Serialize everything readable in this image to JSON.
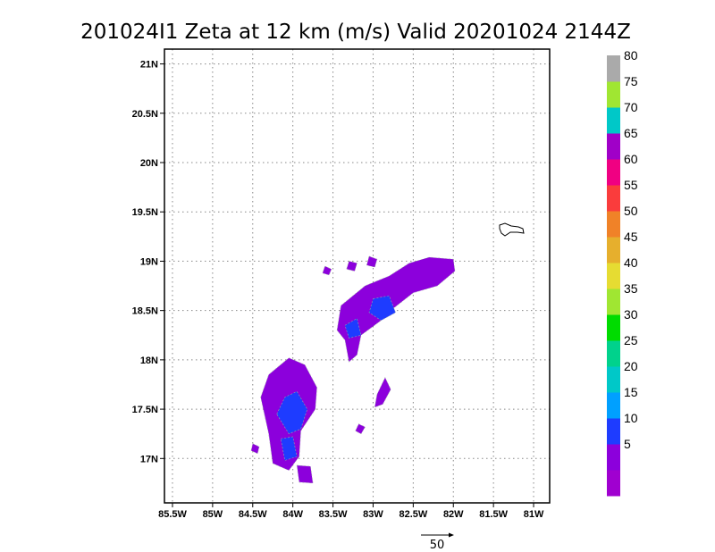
{
  "chart_data": {
    "type": "heatmap",
    "title": "201024I1 Zeta at 12 km (m/s) Valid 20201024 2144Z",
    "x_ticks": [
      {
        "value": -85.5,
        "label": "85.5W"
      },
      {
        "value": -85.0,
        "label": "85W"
      },
      {
        "value": -84.5,
        "label": "84.5W"
      },
      {
        "value": -84.0,
        "label": "84W"
      },
      {
        "value": -83.5,
        "label": "83.5W"
      },
      {
        "value": -83.0,
        "label": "83W"
      },
      {
        "value": -82.5,
        "label": "82.5W"
      },
      {
        "value": -82.0,
        "label": "82W"
      },
      {
        "value": -81.5,
        "label": "81.5W"
      },
      {
        "value": -81.0,
        "label": "81W"
      }
    ],
    "y_ticks": [
      {
        "value": 17.0,
        "label": "17N"
      },
      {
        "value": 17.5,
        "label": "17.5N"
      },
      {
        "value": 18.0,
        "label": "18N"
      },
      {
        "value": 18.5,
        "label": "18.5N"
      },
      {
        "value": 19.0,
        "label": "19N"
      },
      {
        "value": 19.5,
        "label": "19.5N"
      },
      {
        "value": 20.0,
        "label": "20N"
      },
      {
        "value": 20.5,
        "label": "20.5N"
      },
      {
        "value": 21.0,
        "label": "21N"
      }
    ],
    "xlim": [
      -85.6,
      -80.8
    ],
    "ylim": [
      16.55,
      21.15
    ],
    "grid": true,
    "colorbar": {
      "colors": [
        "#a000d0",
        "#8c00dc",
        "#1e3cff",
        "#00a0ff",
        "#00c8c8",
        "#00d28c",
        "#00dc00",
        "#a0e632",
        "#e6dc32",
        "#e6af2d",
        "#f08228",
        "#fa3c3c",
        "#f00082",
        "#a000c8",
        "#00c8c8",
        "#a0e632",
        "#aaaaaa"
      ],
      "labels": [
        {
          "index": 1,
          "text": "5"
        },
        {
          "index": 2,
          "text": "10"
        },
        {
          "index": 3,
          "text": "15"
        },
        {
          "index": 4,
          "text": "20"
        },
        {
          "index": 5,
          "text": "25"
        },
        {
          "index": 6,
          "text": "30"
        },
        {
          "index": 7,
          "text": "35"
        },
        {
          "index": 8,
          "text": "40"
        },
        {
          "index": 9,
          "text": "45"
        },
        {
          "index": 10,
          "text": "50"
        },
        {
          "index": 11,
          "text": "55"
        },
        {
          "index": 12,
          "text": "60"
        },
        {
          "index": 13,
          "text": "65"
        },
        {
          "index": 14,
          "text": "70"
        },
        {
          "index": 15,
          "text": "75"
        },
        {
          "index": 16,
          "text": "80"
        }
      ]
    },
    "wind_reference": {
      "label": "50"
    },
    "regions": [
      {
        "level": 1,
        "points": [
          [
            -83.45,
            18.3
          ],
          [
            -83.4,
            18.55
          ],
          [
            -83.1,
            18.75
          ],
          [
            -82.8,
            18.85
          ],
          [
            -82.55,
            18.98
          ],
          [
            -82.3,
            19.04
          ],
          [
            -82.0,
            19.02
          ],
          [
            -81.98,
            18.9
          ],
          [
            -82.2,
            18.75
          ],
          [
            -82.5,
            18.68
          ],
          [
            -82.75,
            18.52
          ],
          [
            -82.9,
            18.4
          ],
          [
            -83.15,
            18.25
          ],
          [
            -83.2,
            18.05
          ],
          [
            -83.3,
            17.98
          ],
          [
            -83.35,
            18.2
          ]
        ]
      },
      {
        "level": 2,
        "points": [
          [
            -83.0,
            18.62
          ],
          [
            -82.8,
            18.65
          ],
          [
            -82.72,
            18.48
          ],
          [
            -82.9,
            18.4
          ],
          [
            -83.05,
            18.48
          ]
        ]
      },
      {
        "level": 2,
        "points": [
          [
            -83.35,
            18.35
          ],
          [
            -83.2,
            18.42
          ],
          [
            -83.15,
            18.25
          ],
          [
            -83.3,
            18.22
          ]
        ]
      },
      {
        "level": 1,
        "points": [
          [
            -84.4,
            17.62
          ],
          [
            -84.3,
            17.85
          ],
          [
            -84.05,
            18.02
          ],
          [
            -83.85,
            17.95
          ],
          [
            -83.7,
            17.72
          ],
          [
            -83.72,
            17.5
          ],
          [
            -83.9,
            17.28
          ],
          [
            -83.92,
            17.02
          ],
          [
            -84.05,
            16.88
          ],
          [
            -84.25,
            16.95
          ],
          [
            -84.3,
            17.25
          ]
        ]
      },
      {
        "level": 2,
        "points": [
          [
            -84.2,
            17.45
          ],
          [
            -84.1,
            17.62
          ],
          [
            -83.95,
            17.68
          ],
          [
            -83.82,
            17.5
          ],
          [
            -83.9,
            17.3
          ],
          [
            -84.05,
            17.25
          ]
        ]
      },
      {
        "level": 2,
        "points": [
          [
            -84.15,
            17.2
          ],
          [
            -84.0,
            17.22
          ],
          [
            -83.95,
            17.02
          ],
          [
            -84.1,
            16.98
          ]
        ]
      },
      {
        "level": 1,
        "points": [
          [
            -83.95,
            16.93
          ],
          [
            -83.78,
            16.92
          ],
          [
            -83.75,
            16.75
          ],
          [
            -83.92,
            16.76
          ]
        ]
      },
      {
        "level": 1,
        "points": [
          [
            -82.95,
            17.65
          ],
          [
            -82.85,
            17.82
          ],
          [
            -82.78,
            17.7
          ],
          [
            -82.88,
            17.55
          ],
          [
            -82.98,
            17.52
          ]
        ]
      },
      {
        "level": 1,
        "points": [
          [
            -83.18,
            17.35
          ],
          [
            -83.1,
            17.32
          ],
          [
            -83.15,
            17.25
          ],
          [
            -83.22,
            17.28
          ]
        ]
      },
      {
        "level": 1,
        "points": [
          [
            -84.5,
            17.15
          ],
          [
            -84.42,
            17.12
          ],
          [
            -84.44,
            17.05
          ],
          [
            -84.52,
            17.08
          ]
        ]
      },
      {
        "level": 1,
        "points": [
          [
            -83.6,
            18.95
          ],
          [
            -83.52,
            18.92
          ],
          [
            -83.55,
            18.86
          ],
          [
            -83.63,
            18.88
          ]
        ]
      },
      {
        "level": 1,
        "points": [
          [
            -83.3,
            19.0
          ],
          [
            -83.2,
            18.98
          ],
          [
            -83.23,
            18.9
          ],
          [
            -83.33,
            18.92
          ]
        ]
      },
      {
        "level": 1,
        "points": [
          [
            -83.05,
            19.05
          ],
          [
            -82.95,
            19.02
          ],
          [
            -82.98,
            18.94
          ],
          [
            -83.08,
            18.96
          ]
        ]
      }
    ]
  }
}
